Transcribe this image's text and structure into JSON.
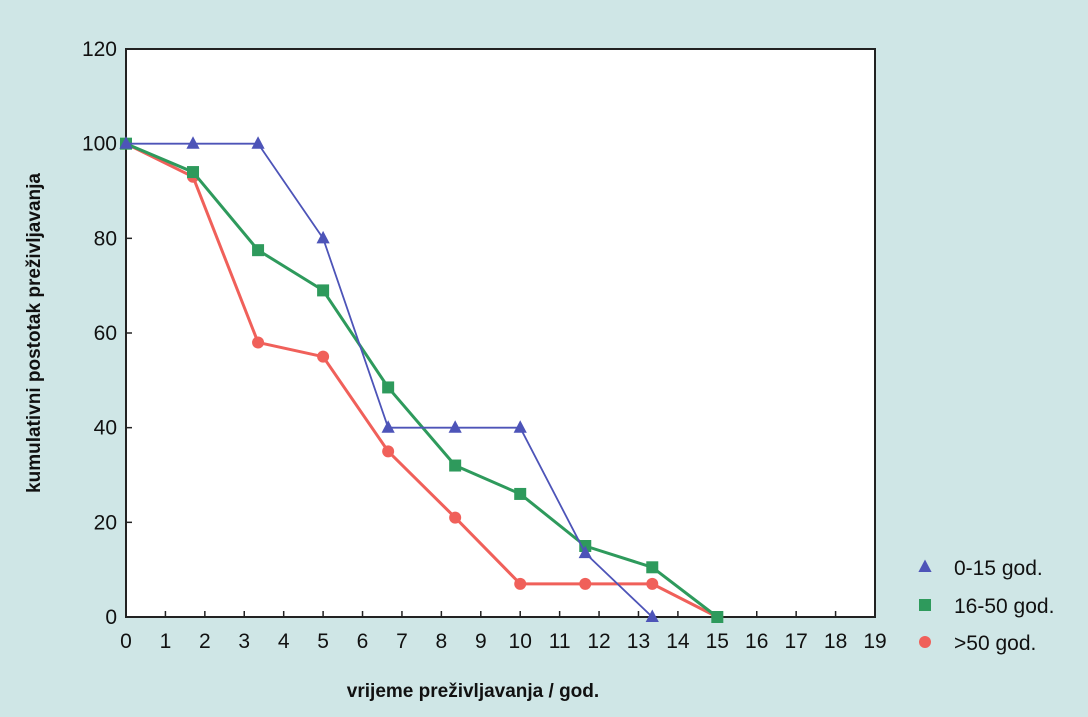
{
  "chart_data": {
    "type": "line",
    "xlabel": "vrijeme preživljavanja / god.",
    "ylabel": "kumulativni postotak preživljavanja",
    "xlim": [
      0,
      19
    ],
    "ylim": [
      0,
      120
    ],
    "xticks": [
      0,
      1,
      2,
      3,
      4,
      5,
      6,
      7,
      8,
      9,
      10,
      11,
      12,
      13,
      14,
      15,
      16,
      17,
      18,
      19
    ],
    "yticks": [
      0,
      20,
      40,
      60,
      80,
      100,
      120
    ],
    "grid": false,
    "legend_position": "right",
    "series": [
      {
        "name": "0-15 god.",
        "marker": "triangle",
        "color": "#4d54b8",
        "x": [
          0,
          1.7,
          3.35,
          5.0,
          6.65,
          8.35,
          10.0,
          11.65,
          13.35
        ],
        "y": [
          100,
          100,
          100,
          80,
          40,
          40,
          40,
          13.5,
          0
        ]
      },
      {
        "name": "16-50 god.",
        "marker": "square",
        "color": "#2e9a5c",
        "x": [
          0,
          1.7,
          3.35,
          5.0,
          6.65,
          8.35,
          10.0,
          11.65,
          13.35,
          15.0
        ],
        "y": [
          100,
          94,
          77.5,
          69,
          48.5,
          32,
          26,
          15,
          10.5,
          0
        ]
      },
      {
        "name": ">50 god.",
        "marker": "circle",
        "color": "#f0605a",
        "x": [
          0,
          1.7,
          3.35,
          5.0,
          6.65,
          8.35,
          10.0,
          11.65,
          13.35,
          15.0
        ],
        "y": [
          100,
          93,
          58,
          55,
          35,
          21,
          7,
          7,
          7,
          0
        ]
      }
    ]
  }
}
